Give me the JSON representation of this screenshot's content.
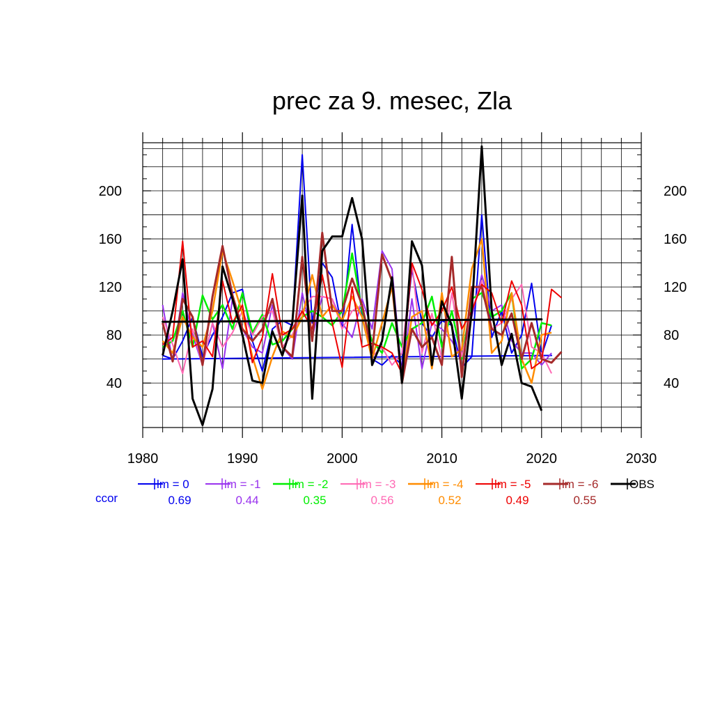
{
  "chart_data": {
    "type": "line",
    "title": "prec za 9. mesec, Zla",
    "xlabel": "",
    "ylabel": "",
    "xlim": [
      1980,
      2030
    ],
    "ylim": [
      3,
      240
    ],
    "x_ticks": [
      "1980",
      "1990",
      "2000",
      "2010",
      "2020",
      "2030"
    ],
    "y_ticks": [
      "40",
      "80",
      "120",
      "160",
      "200"
    ],
    "grid": true,
    "legend_position": "bottom",
    "ccor_label": "ccor",
    "years": [
      1982,
      1983,
      1984,
      1985,
      1986,
      1987,
      1988,
      1989,
      1990,
      1991,
      1992,
      1993,
      1994,
      1995,
      1996,
      1997,
      1998,
      1999,
      2000,
      2001,
      2002,
      2003,
      2004,
      2005,
      2006,
      2007,
      2008,
      2009,
      2010,
      2011,
      2012,
      2013,
      2014,
      2015,
      2016,
      2017,
      2018,
      2019,
      2020,
      2021,
      2022
    ],
    "series": [
      {
        "name": "lm = 0",
        "color": "#0000ee",
        "width": 2,
        "ccor": "0.69",
        "values": [
          63,
          60,
          75,
          95,
          62,
          80,
          95,
          115,
          118,
          75,
          50,
          85,
          92,
          88,
          230,
          90,
          140,
          128,
          85,
          172,
          95,
          60,
          55,
          63,
          55,
          135,
          90,
          78,
          92,
          88,
          53,
          62,
          180,
          78,
          100,
          65,
          80,
          123,
          63,
          88,
          null
        ],
        "trend_values": [
          60,
          63
        ]
      },
      {
        "name": "lm = -1",
        "color": "#9932ee",
        "width": 2,
        "ccor": "0.44",
        "values": [
          105,
          58,
          115,
          80,
          55,
          90,
          52,
          110,
          85,
          70,
          65,
          105,
          70,
          60,
          115,
          78,
          112,
          110,
          90,
          78,
          110,
          85,
          150,
          135,
          45,
          110,
          52,
          90,
          85,
          75,
          60,
          95,
          130,
          100,
          105,
          75,
          65,
          65,
          55,
          65,
          null
        ]
      },
      {
        "name": "lm = -2",
        "color": "#00ee00",
        "width": 2.5,
        "ccor": "0.35",
        "values": [
          70,
          75,
          100,
          70,
          113,
          93,
          105,
          85,
          115,
          82,
          97,
          72,
          75,
          85,
          95,
          100,
          95,
          88,
          100,
          148,
          100,
          75,
          65,
          90,
          70,
          85,
          90,
          112,
          70,
          100,
          60,
          110,
          115,
          95,
          100,
          115,
          52,
          60,
          90,
          88,
          null
        ]
      },
      {
        "name": "lm = -3",
        "color": "#ff69b4",
        "width": 2,
        "ccor": "0.56",
        "values": [
          95,
          72,
          48,
          85,
          55,
          90,
          70,
          82,
          100,
          80,
          95,
          100,
          70,
          80,
          100,
          112,
          112,
          110,
          85,
          100,
          105,
          62,
          70,
          55,
          65,
          140,
          65,
          98,
          60,
          115,
          62,
          100,
          125,
          85,
          90,
          110,
          122,
          70,
          65,
          48,
          null
        ]
      },
      {
        "name": "lm = -4",
        "color": "#ff8c00",
        "width": 2.5,
        "ccor": "0.52",
        "values": [
          75,
          65,
          95,
          78,
          70,
          100,
          150,
          125,
          98,
          62,
          35,
          62,
          83,
          78,
          95,
          130,
          95,
          105,
          92,
          112,
          95,
          60,
          90,
          120,
          42,
          95,
          100,
          52,
          115,
          62,
          68,
          135,
          160,
          65,
          75,
          115,
          60,
          40,
          80,
          82,
          null
        ]
      },
      {
        "name": "lm = -5",
        "color": "#ee0000",
        "width": 2,
        "ccor": "0.49",
        "values": [
          72,
          78,
          158,
          70,
          75,
          62,
          125,
          90,
          105,
          57,
          78,
          131,
          80,
          85,
          100,
          85,
          130,
          90,
          53,
          120,
          70,
          73,
          70,
          65,
          48,
          140,
          118,
          88,
          100,
          120,
          85,
          100,
          122,
          115,
          90,
          125,
          105,
          52,
          58,
          118,
          111
        ]
      },
      {
        "name": "lm = -6",
        "color": "#a52a2a",
        "width": 3,
        "ccor": "0.55",
        "values": [
          90,
          58,
          110,
          95,
          55,
          112,
          154,
          113,
          85,
          75,
          85,
          110,
          70,
          62,
          145,
          75,
          165,
          100,
          100,
          127,
          105,
          65,
          147,
          125,
          40,
          85,
          70,
          78,
          55,
          145,
          45,
          120,
          120,
          85,
          80,
          98,
          60,
          90,
          60,
          57,
          66
        ]
      },
      {
        "name": "OBS",
        "color": "#000000",
        "width": 3,
        "ccor": "",
        "values": [
          63,
          100,
          143,
          27,
          5,
          35,
          137,
          110,
          80,
          42,
          40,
          83,
          63,
          90,
          196,
          27,
          150,
          162,
          162,
          194,
          160,
          55,
          75,
          128,
          40,
          158,
          138,
          55,
          108,
          88,
          27,
          100,
          237,
          100,
          55,
          81,
          40,
          37,
          17,
          null,
          null
        ],
        "trend_values": [
          91,
          93
        ]
      }
    ]
  }
}
